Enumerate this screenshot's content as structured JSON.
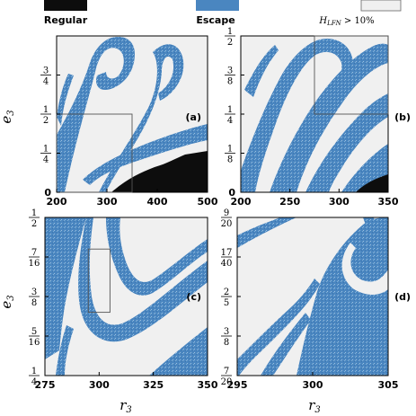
{
  "legend": {
    "items": [
      {
        "label": "Regular",
        "color": "#0d0d0d"
      },
      {
        "label": "Escape",
        "color": "#4a86c0"
      },
      {
        "label_main": "H",
        "label_sub": "LFN",
        "label_rest": " > 10%",
        "color": "#f0f0f0"
      }
    ]
  },
  "colors": {
    "regular": "#0d0d0d",
    "escape": "#4a86c0",
    "lfn": "#f0f0f0"
  },
  "chart_data": [
    {
      "type": "heatmap",
      "panel_label": "(a)",
      "xlabel_main": "",
      "xlabel_sub": "",
      "ylabel_main": "e",
      "ylabel_sub": "3",
      "xlim": [
        200,
        500
      ],
      "ylim": [
        0,
        1
      ],
      "x_ticks": [
        {
          "v": 200,
          "t": "200"
        },
        {
          "v": 300,
          "t": "300"
        },
        {
          "v": 400,
          "t": "400"
        },
        {
          "v": 500,
          "t": "500"
        }
      ],
      "y_ticks": [
        {
          "v": 0,
          "t": "0"
        },
        {
          "v": 0.25,
          "n": "1",
          "d": "4"
        },
        {
          "v": 0.5,
          "n": "1",
          "d": "2"
        },
        {
          "v": 0.75,
          "n": "3",
          "d": "4"
        }
      ],
      "zoom_box": {
        "x0": 200,
        "x1": 350,
        "y0": 0,
        "y1": 0.5
      }
    },
    {
      "type": "heatmap",
      "panel_label": "(b)",
      "xlabel_main": "",
      "xlabel_sub": "",
      "ylabel_main": "",
      "ylabel_sub": "",
      "xlim": [
        200,
        350
      ],
      "ylim": [
        0,
        0.5
      ],
      "x_ticks": [
        {
          "v": 200,
          "t": "200"
        },
        {
          "v": 250,
          "t": "250"
        },
        {
          "v": 300,
          "t": "300"
        },
        {
          "v": 350,
          "t": "350"
        }
      ],
      "y_ticks": [
        {
          "v": 0,
          "t": "0"
        },
        {
          "v": 0.125,
          "n": "1",
          "d": "8"
        },
        {
          "v": 0.25,
          "n": "1",
          "d": "4"
        },
        {
          "v": 0.375,
          "n": "3",
          "d": "8"
        },
        {
          "v": 0.5,
          "n": "1",
          "d": "2"
        }
      ],
      "zoom_box": {
        "x0": 275,
        "x1": 350,
        "y0": 0.25,
        "y1": 0.5
      }
    },
    {
      "type": "heatmap",
      "panel_label": "(c)",
      "xlabel_main": "r",
      "xlabel_sub": "3",
      "ylabel_main": "e",
      "ylabel_sub": "3",
      "xlim": [
        275,
        350
      ],
      "ylim": [
        0.25,
        0.5
      ],
      "x_ticks": [
        {
          "v": 275,
          "t": "275"
        },
        {
          "v": 300,
          "t": "300"
        },
        {
          "v": 325,
          "t": "325"
        },
        {
          "v": 350,
          "t": "350"
        }
      ],
      "y_ticks": [
        {
          "v": 0.25,
          "n": "1",
          "d": "4"
        },
        {
          "v": 0.3125,
          "n": "5",
          "d": "16"
        },
        {
          "v": 0.375,
          "n": "3",
          "d": "8"
        },
        {
          "v": 0.4375,
          "n": "7",
          "d": "16"
        },
        {
          "v": 0.5,
          "n": "1",
          "d": "2"
        }
      ],
      "zoom_box": {
        "x0": 295,
        "x1": 305,
        "y0": 0.35,
        "y1": 0.45
      }
    },
    {
      "type": "heatmap",
      "panel_label": "(d)",
      "xlabel_main": "r",
      "xlabel_sub": "3",
      "ylabel_main": "",
      "ylabel_sub": "",
      "xlim": [
        295,
        305
      ],
      "ylim": [
        0.35,
        0.45
      ],
      "x_ticks": [
        {
          "v": 295,
          "t": "295"
        },
        {
          "v": 300,
          "t": "300"
        },
        {
          "v": 305,
          "t": "305"
        }
      ],
      "y_ticks": [
        {
          "v": 0.35,
          "n": "7",
          "d": "20"
        },
        {
          "v": 0.375,
          "n": "3",
          "d": "8"
        },
        {
          "v": 0.4,
          "n": "2",
          "d": "5"
        },
        {
          "v": 0.425,
          "n": "17",
          "d": "40"
        },
        {
          "v": 0.45,
          "n": "9",
          "d": "20"
        }
      ],
      "zoom_box": null
    }
  ]
}
